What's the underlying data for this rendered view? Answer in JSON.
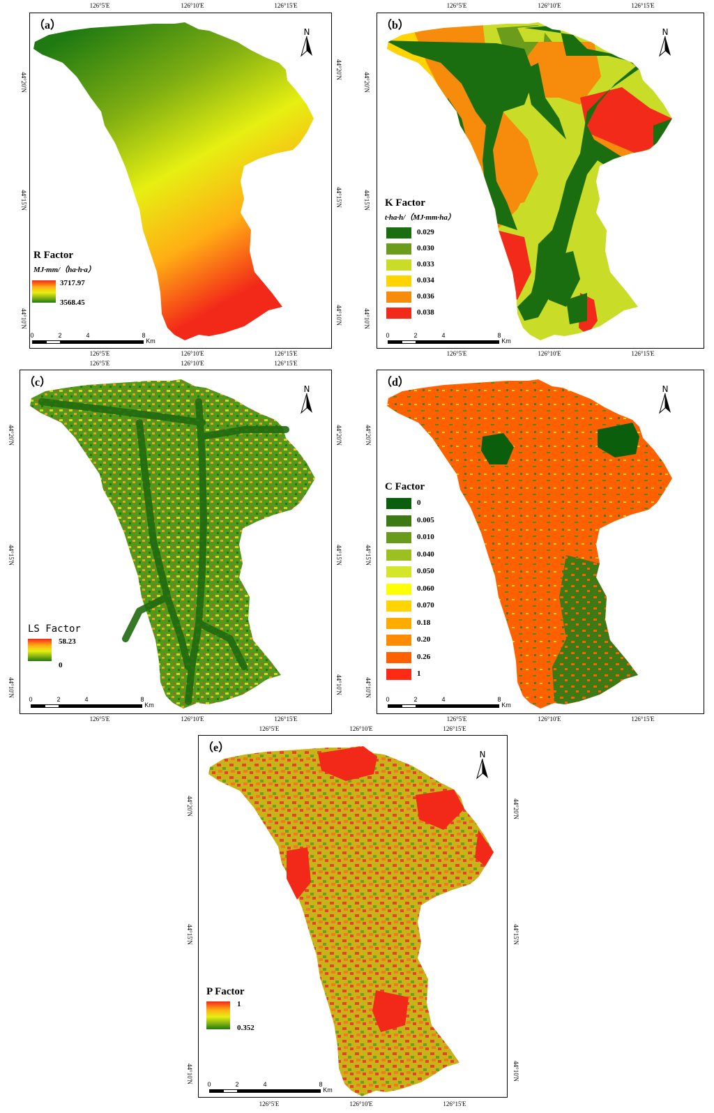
{
  "ticks": {
    "lon": [
      "126°5'E",
      "126°10'E",
      "126°15'E"
    ],
    "lat": [
      "44°20'N",
      "44°15'N",
      "44°10'N"
    ]
  },
  "scalebar": {
    "labels": [
      "0",
      "2",
      "4",
      "8"
    ],
    "unit": "Km"
  },
  "north": "N",
  "panels": {
    "a": {
      "label": "（a）",
      "title": "R Factor",
      "unit": "MJ·mm/（ha·h·a）",
      "max": "3717.97",
      "min": "3568.45"
    },
    "b": {
      "label": "（b）",
      "title": "K Factor",
      "unit": "t·ha·h/（MJ·mm·ha）",
      "classes": [
        {
          "value": "0.029",
          "color": "#1a6e10"
        },
        {
          "value": "0.030",
          "color": "#6b9c1c"
        },
        {
          "value": "0.033",
          "color": "#c8dc28"
        },
        {
          "value": "0.034",
          "color": "#ffd400"
        },
        {
          "value": "0.036",
          "color": "#f68b0c"
        },
        {
          "value": "0.038",
          "color": "#f12a1a"
        }
      ]
    },
    "c": {
      "label": "（c）",
      "title": "LS Factor",
      "max": "58.23",
      "min": "0"
    },
    "d": {
      "label": "（d）",
      "title": "C Factor",
      "classes": [
        {
          "value": "0",
          "color": "#0b5e0b"
        },
        {
          "value": "0.005",
          "color": "#3d7a14"
        },
        {
          "value": "0.010",
          "color": "#689a1c"
        },
        {
          "value": "0.040",
          "color": "#9cc022"
        },
        {
          "value": "0.050",
          "color": "#d4e62c"
        },
        {
          "value": "0.060",
          "color": "#ffff00"
        },
        {
          "value": "0.070",
          "color": "#ffd400"
        },
        {
          "value": "0.18",
          "color": "#ffab00"
        },
        {
          "value": "0.20",
          "color": "#ff8c00"
        },
        {
          "value": "0.26",
          "color": "#ff6000"
        },
        {
          "value": "1",
          "color": "#ff2a14"
        }
      ]
    },
    "e": {
      "label": "（e）",
      "title": "P Factor",
      "max": "1",
      "min": "0.352"
    }
  }
}
